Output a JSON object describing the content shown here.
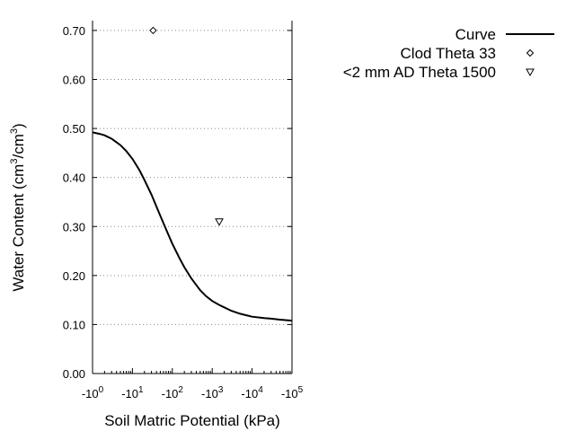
{
  "chart_data": {
    "type": "scatter",
    "xlabel": "Soil Matric Potential (kPa)",
    "ylabel": {
      "text": "Water Content (cm",
      "sup1": "3",
      "mid": "/cm",
      "sup2": "3",
      "end": ")"
    },
    "x_scale": "log",
    "xlim": [
      -1,
      -100000
    ],
    "ylim": [
      0,
      0.72
    ],
    "x_ticks": [
      {
        "value": -1,
        "base": "-10",
        "exp": "0"
      },
      {
        "value": -10,
        "base": "-10",
        "exp": "1"
      },
      {
        "value": -100,
        "base": "-10",
        "exp": "2"
      },
      {
        "value": -1000,
        "base": "-10",
        "exp": "3"
      },
      {
        "value": -10000,
        "base": "-10",
        "exp": "4"
      },
      {
        "value": -100000,
        "base": "-10",
        "exp": "5"
      }
    ],
    "y_ticks": [
      "0.00",
      "0.10",
      "0.20",
      "0.30",
      "0.40",
      "0.50",
      "0.60",
      "0.70"
    ],
    "grid": "horizontal dotted",
    "legend_position": "top-right, outside plot",
    "series": [
      {
        "name": "Curve",
        "kind": "line",
        "color": "#000000",
        "x": [
          -1,
          -1.5,
          -2,
          -3,
          -5,
          -7,
          -10,
          -15,
          -20,
          -30,
          -50,
          -70,
          -100,
          -150,
          -200,
          -300,
          -500,
          -700,
          -1000,
          -1500,
          -2000,
          -3000,
          -5000,
          -7000,
          -10000,
          -20000,
          -30000,
          -50000,
          -100000
        ],
        "y": [
          0.492,
          0.489,
          0.486,
          0.479,
          0.466,
          0.454,
          0.438,
          0.415,
          0.395,
          0.365,
          0.322,
          0.294,
          0.265,
          0.236,
          0.217,
          0.194,
          0.17,
          0.158,
          0.148,
          0.14,
          0.135,
          0.128,
          0.122,
          0.119,
          0.116,
          0.113,
          0.112,
          0.11,
          0.108
        ]
      },
      {
        "name": "Clod Theta 33",
        "kind": "scatter",
        "marker": "diamond",
        "points": [
          {
            "x": -33,
            "y": 0.7
          }
        ]
      },
      {
        "name": "<2 mm AD Theta 1500",
        "kind": "scatter",
        "marker": "triangle-down",
        "points": [
          {
            "x": -1500,
            "y": 0.31
          }
        ]
      }
    ]
  }
}
